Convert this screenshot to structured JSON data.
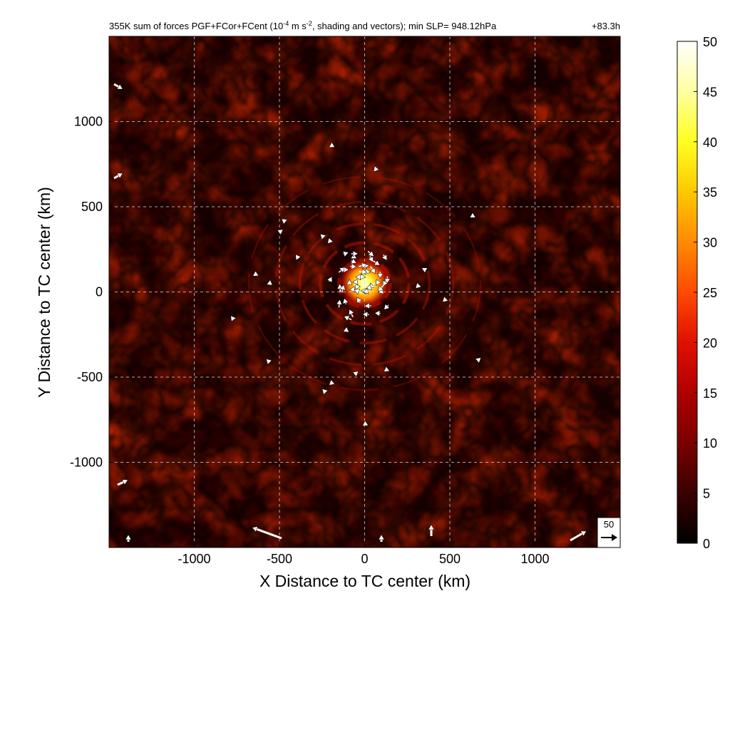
{
  "chart_data": {
    "type": "heatmap",
    "title": "355K sum of forces PGF+FCor+FCent (10",
    "title_exp": "-4",
    "title_mid": " m s",
    "title_exp2": "-2",
    "title_end": ", shading and vectors); min SLP= 948.12hPa",
    "time_label": "+83.3h",
    "xlabel": "X Distance to TC center (km)",
    "ylabel": "Y Distance to TC center (km)",
    "xlim": [
      -1500,
      1500
    ],
    "ylim": [
      -1500,
      1500
    ],
    "xticks": [
      -1000,
      -500,
      0,
      500,
      1000
    ],
    "yticks": [
      -1000,
      -500,
      0,
      500,
      1000
    ],
    "grid": true,
    "grid_style": "dashed-white",
    "colormap": "hot",
    "colorbar": {
      "min": 0,
      "max": 50,
      "ticks": [
        0,
        5,
        10,
        15,
        20,
        25,
        30,
        35,
        40,
        45,
        50
      ],
      "colors": [
        "#000000",
        "#3a0000",
        "#7a0000",
        "#b00000",
        "#e01000",
        "#ff4a00",
        "#ff8a00",
        "#ffc800",
        "#ffff20",
        "#ffffa0",
        "#ffffff"
      ]
    },
    "reference_vector": {
      "value": "50"
    },
    "features": {
      "background_level": 6,
      "core_max": 50,
      "core_center_km": [
        0,
        50
      ],
      "spiral_rings_km": [
        150,
        260,
        380,
        520,
        680
      ]
    }
  }
}
